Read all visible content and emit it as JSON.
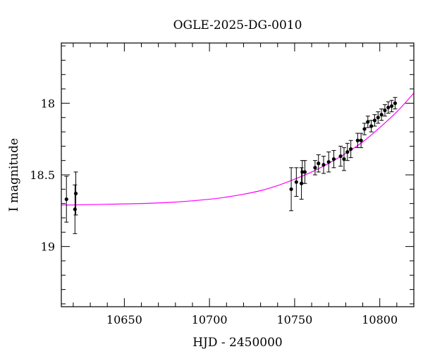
{
  "chart_data": {
    "type": "scatter",
    "title": "OGLE-2025-DG-0010",
    "xlabel": "HJD - 2450000",
    "ylabel": "I magnitude",
    "xlim": [
      10613,
      10820
    ],
    "ylim": [
      19.42,
      17.58
    ],
    "y_inverted": true,
    "grid": false,
    "x_major_ticks": [
      10650,
      10700,
      10750,
      10800
    ],
    "x_minor_step": 10,
    "y_major_ticks": [
      18,
      18.5,
      19
    ],
    "y_minor_step": 0.1,
    "x_tick_labels": [
      "10650",
      "10700",
      "10750",
      "10800"
    ],
    "y_tick_labels": [
      "18",
      "18.5",
      "19"
    ],
    "colors": {
      "model": "#ff00ff",
      "points": "#000000"
    },
    "points": [
      {
        "x": 10616.0,
        "y": 18.67,
        "err": 0.16
      },
      {
        "x": 10621.0,
        "y": 18.74,
        "err": 0.17
      },
      {
        "x": 10621.5,
        "y": 18.63,
        "err": 0.15
      },
      {
        "x": 10748.0,
        "y": 18.6,
        "err": 0.15
      },
      {
        "x": 10751.0,
        "y": 18.55,
        "err": 0.1
      },
      {
        "x": 10754.0,
        "y": 18.56,
        "err": 0.11
      },
      {
        "x": 10754.5,
        "y": 18.48,
        "err": 0.08
      },
      {
        "x": 10756.0,
        "y": 18.48,
        "err": 0.08
      },
      {
        "x": 10762.0,
        "y": 18.45,
        "err": 0.05
      },
      {
        "x": 10764.0,
        "y": 18.42,
        "err": 0.06
      },
      {
        "x": 10767.0,
        "y": 18.43,
        "err": 0.06
      },
      {
        "x": 10770.0,
        "y": 18.41,
        "err": 0.07
      },
      {
        "x": 10773.0,
        "y": 18.39,
        "err": 0.06
      },
      {
        "x": 10777.0,
        "y": 18.37,
        "err": 0.07
      },
      {
        "x": 10779.0,
        "y": 18.39,
        "err": 0.08
      },
      {
        "x": 10781.0,
        "y": 18.34,
        "err": 0.06
      },
      {
        "x": 10783.0,
        "y": 18.32,
        "err": 0.06
      },
      {
        "x": 10787.0,
        "y": 18.26,
        "err": 0.05
      },
      {
        "x": 10789.0,
        "y": 18.26,
        "err": 0.05
      },
      {
        "x": 10791.0,
        "y": 18.18,
        "err": 0.04
      },
      {
        "x": 10793.0,
        "y": 18.13,
        "err": 0.04
      },
      {
        "x": 10795.0,
        "y": 18.16,
        "err": 0.04
      },
      {
        "x": 10797.0,
        "y": 18.12,
        "err": 0.04
      },
      {
        "x": 10799.0,
        "y": 18.1,
        "err": 0.04
      },
      {
        "x": 10801.0,
        "y": 18.08,
        "err": 0.04
      },
      {
        "x": 10803.0,
        "y": 18.05,
        "err": 0.04
      },
      {
        "x": 10805.0,
        "y": 18.03,
        "err": 0.04
      },
      {
        "x": 10807.0,
        "y": 18.02,
        "err": 0.04
      },
      {
        "x": 10809.0,
        "y": 18.0,
        "err": 0.04
      }
    ],
    "model_curve": {
      "x": [
        10613,
        10620,
        10640,
        10660,
        10680,
        10700,
        10710,
        10720,
        10730,
        10740,
        10750,
        10760,
        10770,
        10780,
        10790,
        10800,
        10810,
        10820
      ],
      "y": [
        18.71,
        18.71,
        18.705,
        18.7,
        18.69,
        18.67,
        18.655,
        18.635,
        18.61,
        18.575,
        18.53,
        18.48,
        18.42,
        18.35,
        18.27,
        18.17,
        18.06,
        17.93
      ]
    }
  }
}
